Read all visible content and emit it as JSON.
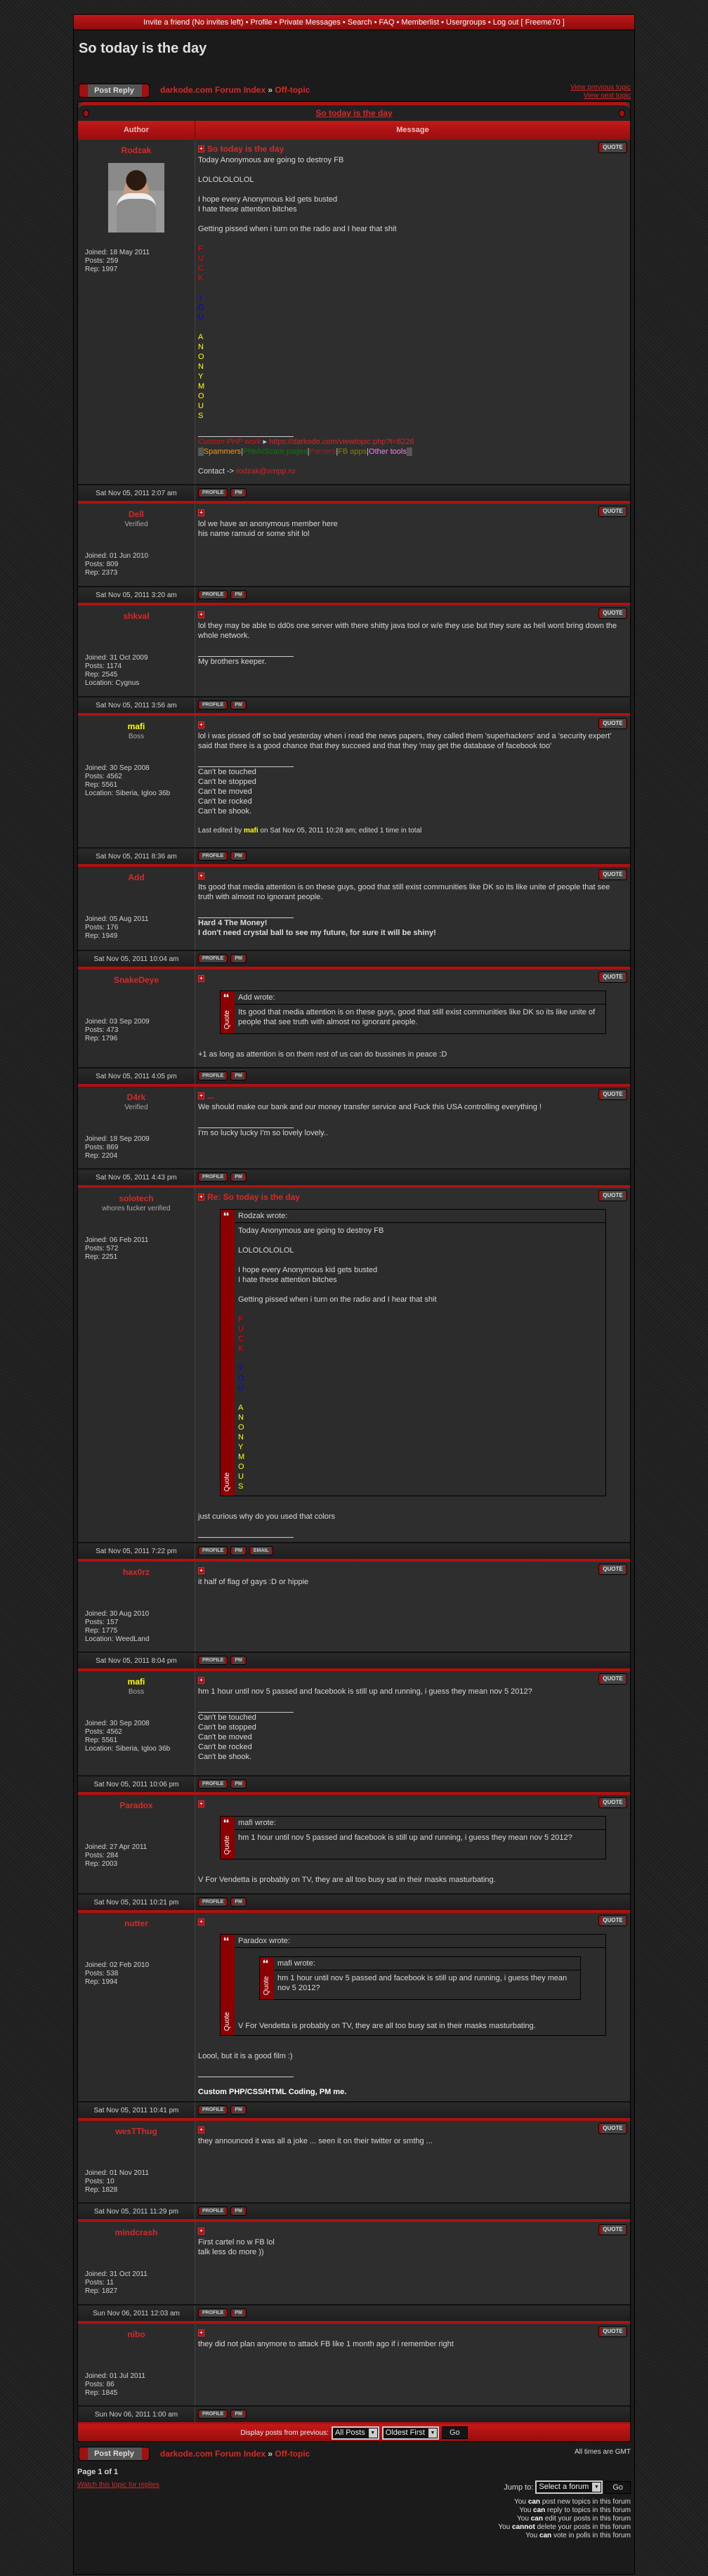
{
  "nav": {
    "items": [
      "Invite a friend (No invites left)",
      "Profile",
      "Private Messages",
      "Search",
      "FAQ",
      "Memberlist",
      "Usergroups",
      "Log out [ Freeme70 ]"
    ]
  },
  "topic": {
    "title": "So today is the day",
    "post_reply": "Post Reply",
    "breadcrumb": {
      "forum_index": "darkode.com Forum Index",
      "separator": "»",
      "forum": "Off-topic"
    },
    "view_previous": "View previous topic",
    "view_next": "View next topic",
    "col_author": "Author",
    "col_message": "Message"
  },
  "colors": {
    "accent": "#b01010",
    "link": "#d42a2a",
    "yellow_user": "#ffff00"
  },
  "labels": {
    "quote": "QUOTE",
    "quote_side": "Quote",
    "joined": "Joined: ",
    "posts": "Posts: ",
    "rep": "Rep: ",
    "location": "Location: "
  },
  "posts": [
    {
      "author": "Rodzak",
      "author_color": "#d42a2a",
      "avatar": true,
      "joined": "18 May 2011",
      "posts": "259",
      "rep": "1997",
      "date": "Sat Nov 05, 2011 2:07 am",
      "subject": "So today is the day",
      "body": [
        "Today Anonymous are going to destroy FB",
        "",
        "LOLOLOLOLOL",
        "",
        "I hope every Anonymous kid gets busted",
        "I hate these attention bitches",
        "",
        "Getting pissed when i turn on the radio and I hear that shit",
        "",
        {
          "t": "F",
          "c": "#ff0000"
        },
        {
          "t": "U",
          "c": "#ff0000"
        },
        {
          "t": "C",
          "c": "#ff0000"
        },
        {
          "t": "K",
          "c": "#ff0000"
        },
        "",
        {
          "t": "Y",
          "c": "#0000ff"
        },
        {
          "t": "O",
          "c": "#0000ff"
        },
        {
          "t": "U",
          "c": "#0000ff"
        },
        "",
        {
          "t": "A",
          "c": "#ffff00"
        },
        {
          "t": "N",
          "c": "#ffff00"
        },
        {
          "t": "O",
          "c": "#ffff00"
        },
        {
          "t": "N",
          "c": "#ffff00"
        },
        {
          "t": "Y",
          "c": "#ffff00"
        },
        {
          "t": "M",
          "c": "#ffff00"
        },
        {
          "t": "O",
          "c": "#ffff00"
        },
        {
          "t": "U",
          "c": "#ffff00"
        },
        {
          "t": "S",
          "c": "#ffff00"
        }
      ],
      "signature": [
        [
          {
            "t": "Custom PHP work",
            "c": "#e01010",
            "i": true
          },
          {
            "t": " ▸ ",
            "c": "#cccccc"
          },
          {
            "t": "https://darkode.com/viewtopic.php?t=8226",
            "c": "#e02020"
          }
        ],
        [
          {
            "t": "▒",
            "c": "#cccccc"
          },
          {
            "t": "Spammers",
            "c": "#ff9900"
          },
          {
            "t": "|",
            "c": "#cccccc"
          },
          {
            "t": "Phish/Scam pages",
            "c": "#008000"
          },
          {
            "t": "|",
            "c": "#cccccc"
          },
          {
            "t": "Parsers",
            "c": "#a02020"
          },
          {
            "t": "|",
            "c": "#cccccc"
          },
          {
            "t": "FB apps",
            "c": "#808000"
          },
          {
            "t": "|",
            "c": "#cccccc"
          },
          {
            "t": "Other tools",
            "c": "#ee82ee"
          },
          {
            "t": "▒",
            "c": "#cccccc"
          }
        ],
        "",
        [
          {
            "t": "Contact -> ",
            "c": "#d8d8d8"
          },
          {
            "t": "rodzak@xmpp.ru",
            "c": "#e02020"
          }
        ]
      ],
      "buttons": [
        "PROFILE",
        "PM"
      ]
    },
    {
      "author": "Dell",
      "author_color": "#d42a2a",
      "rank": "Verified",
      "joined": "01 Jun 2010",
      "posts": "809",
      "rep": "2373",
      "date": "Sat Nov 05, 2011 3:20 am",
      "body": [
        "lol we have an anonymous member here",
        "his name ramuid or some shit lol"
      ],
      "buttons": [
        "PROFILE",
        "PM"
      ]
    },
    {
      "author": "shkval",
      "author_color": "#d42a2a",
      "joined": "31 Oct 2009",
      "posts": "1174",
      "rep": "2545",
      "location": "Cygnus",
      "date": "Sat Nov 05, 2011 3:56 am",
      "body": [
        "lol they may be able to dd0s one server with there shitty java tool or w/e they use but they sure as hell wont bring down the whole network."
      ],
      "signature": [
        "My brothers keeper."
      ],
      "buttons": [
        "PROFILE",
        "PM"
      ]
    },
    {
      "author": "mafi",
      "author_color": "#ffff00",
      "rank": "Boss",
      "joined": "30 Sep 2008",
      "posts": "4562",
      "rep": "5561",
      "location": "Siberia, Igloo 36b",
      "date": "Sat Nov 05, 2011 8:36 am",
      "body": [
        "lol i was pissed off so bad yesterday when i read the news papers, they called them 'superhackers' and a 'security expert' said that there is a good chance that they succeed and that they 'may get the database of facebook too'"
      ],
      "signature": [
        "Can't be touched",
        "Can't be stopped",
        "Can't be moved",
        "Can't be rocked",
        "Can't be shook."
      ],
      "edited": [
        {
          "t": "Last edited by ",
          "c": "#d8d8d8"
        },
        {
          "t": "mafi",
          "c": "#ffff00",
          "b": true
        },
        {
          "t": " on Sat Nov 05, 2011 10:28 am; edited 1 time in total",
          "c": "#d8d8d8"
        }
      ],
      "buttons": [
        "PROFILE",
        "PM"
      ]
    },
    {
      "author": "Add",
      "author_color": "#d42a2a",
      "joined": "05 Aug 2011",
      "posts": "176",
      "rep": "1949",
      "date": "Sat Nov 05, 2011 10:04 am",
      "body": [
        "Its good that media attention is on these guys, good that still exist communities like DK so its like unite of people that see truth with almost no ignorant people."
      ],
      "signature": [
        {
          "t": "Hard 4 The Money!",
          "b": true,
          "c": "#dddddd"
        },
        {
          "t": "I don't need crystal ball to see my future, for sure it will be shiny!",
          "b": true,
          "c": "#dddddd"
        }
      ],
      "buttons": [
        "PROFILE",
        "PM"
      ]
    },
    {
      "author": "SnakeDeye",
      "author_color": "#d42a2a",
      "joined": "03 Sep 2009",
      "posts": "473",
      "rep": "1796",
      "date": "Sat Nov 05, 2011 4:05 pm",
      "body": [
        {
          "quote": "Add wrote:",
          "body": [
            "Its good that media attention is on these guys, good that still exist communities like DK so its like unite of people that see truth with almost no ignorant people."
          ]
        },
        "",
        "+1 as long as attention is on them rest of us can do bussines in peace :D"
      ],
      "buttons": [
        "PROFILE",
        "PM"
      ]
    },
    {
      "author": "D4rk",
      "author_color": "#d42a2a",
      "rank": "Verified",
      "joined": "18 Sep 2009",
      "posts": "869",
      "rep": "2204",
      "date": "Sat Nov 05, 2011 4:43 pm",
      "subject": "...",
      "body": [
        "We should make our bank and our money transfer service and Fuck this USA controlling everything !"
      ],
      "signature": [
        "I'm so lucky lucky I'm so lovely lovely.."
      ],
      "buttons": [
        "PROFILE",
        "PM"
      ]
    },
    {
      "author": "solotech",
      "author_color": "#d42a2a",
      "rank": "whores fucker verified",
      "joined": "06 Feb 2011",
      "posts": "572",
      "rep": "2251",
      "date": "Sat Nov 05, 2011 7:22 pm",
      "subject": "Re: So today is the day",
      "body": [
        {
          "quote": "Rodzak wrote:",
          "body": [
            "Today Anonymous are going to destroy FB",
            "",
            "LOLOLOLOLOL",
            "",
            "I hope every Anonymous kid gets busted",
            "I hate these attention bitches",
            "",
            "Getting pissed when i turn on the radio and I hear that shit",
            "",
            {
              "t": "F",
              "c": "#ff0000"
            },
            {
              "t": "U",
              "c": "#ff0000"
            },
            {
              "t": "C",
              "c": "#ff0000"
            },
            {
              "t": "K",
              "c": "#ff0000"
            },
            "",
            {
              "t": "Y",
              "c": "#0000ff"
            },
            {
              "t": "O",
              "c": "#0000ff"
            },
            {
              "t": "U",
              "c": "#0000ff"
            },
            "",
            {
              "t": "A",
              "c": "#ffff00"
            },
            {
              "t": "N",
              "c": "#ffff00"
            },
            {
              "t": "O",
              "c": "#ffff00"
            },
            {
              "t": "N",
              "c": "#ffff00"
            },
            {
              "t": "Y",
              "c": "#ffff00"
            },
            {
              "t": "M",
              "c": "#ffff00"
            },
            {
              "t": "O",
              "c": "#ffff00"
            },
            {
              "t": "U",
              "c": "#ffff00"
            },
            {
              "t": "S",
              "c": "#ffff00"
            }
          ]
        },
        "",
        "just curious why do you used that colors"
      ],
      "signature": [],
      "buttons": [
        "PROFILE",
        "PM",
        "EMAIL"
      ]
    },
    {
      "author": "hax0rz",
      "author_color": "#d42a2a",
      "joined": "30 Aug 2010",
      "posts": "157",
      "rep": "1775",
      "location": "WeedLand",
      "date": "Sat Nov 05, 2011 8:04 pm",
      "body": [
        "it half of flag of gays :D or hippie"
      ],
      "buttons": [
        "PROFILE",
        "PM"
      ]
    },
    {
      "author": "mafi",
      "author_color": "#ffff00",
      "rank": "Boss",
      "joined": "30 Sep 2008",
      "posts": "4562",
      "rep": "5561",
      "location": "Siberia, Igloo 36b",
      "date": "Sat Nov 05, 2011 10:06 pm",
      "body": [
        "hm 1 hour until nov 5 passed and facebook is still up and running, i guess they mean nov 5 2012?"
      ],
      "signature": [
        "Can't be touched",
        "Can't be stopped",
        "Can't be moved",
        "Can't be rocked",
        "Can't be shook."
      ],
      "buttons": [
        "PROFILE",
        "PM"
      ]
    },
    {
      "author": "Paradox",
      "author_color": "#d42a2a",
      "joined": "27 Apr 2011",
      "posts": "284",
      "rep": "2003",
      "date": "Sat Nov 05, 2011 10:21 pm",
      "body": [
        {
          "quote": "mafi wrote:",
          "body": [
            "hm 1 hour until nov 5 passed and facebook is still up and running, i guess they mean nov 5 2012?"
          ]
        },
        "",
        "V For Vendetta is probably on TV, they are all too busy sat in their masks masturbating."
      ],
      "buttons": [
        "PROFILE",
        "PM"
      ]
    },
    {
      "author": "nutter",
      "author_color": "#d42a2a",
      "joined": "02 Feb 2010",
      "posts": "538",
      "rep": "1994",
      "date": "Sat Nov 05, 2011 10:41 pm",
      "body": [
        {
          "quote": "Paradox wrote:",
          "body": [
            {
              "quote": "mafi wrote:",
              "body": [
                "hm 1 hour until nov 5 passed and facebook is still up and running, i guess they mean nov 5 2012?"
              ]
            },
            "V For Vendetta is probably on TV, they are all too busy sat in their masks masturbating."
          ]
        },
        "",
        "Loool, but it is a good film :)"
      ],
      "signature": [
        "",
        {
          "t": "Custom PHP/CSS/HTML Coding, PM me.",
          "b": true,
          "c": "#ffffff"
        }
      ],
      "buttons": [
        "PROFILE",
        "PM"
      ]
    },
    {
      "author": "wesTThug",
      "author_color": "#d42a2a",
      "joined": "01 Nov 2011",
      "posts": "10",
      "rep": "1828",
      "date": "Sat Nov 05, 2011 11:29 pm",
      "body": [
        "they announced it was all a joke ... seen it on their twitter or smthg ..."
      ],
      "buttons": [
        "PROFILE",
        "PM"
      ]
    },
    {
      "author": "mindcrash",
      "author_color": "#d42a2a",
      "joined": "31 Oct 2011",
      "posts": "11",
      "rep": "1827",
      "date": "Sun Nov 06, 2011 12:03 am",
      "body": [
        "First cartel no w FB lol",
        "talk less do more ))"
      ],
      "buttons": [
        "PROFILE",
        "PM"
      ]
    },
    {
      "author": "nibo",
      "author_color": "#d42a2a",
      "joined": "01 Jul 2011",
      "posts": "86",
      "rep": "1845",
      "date": "Sun Nov 06, 2011 1:00 am",
      "body": [
        "they did not plan anymore to attack FB like 1 month ago if i remember right"
      ],
      "buttons": [
        "PROFILE",
        "PM"
      ]
    }
  ],
  "display_bar": {
    "label": "Display posts from previous:",
    "range_value": "All Posts",
    "order_value": "Oldest First",
    "go": "Go"
  },
  "footer": {
    "timezone": "All times are GMT",
    "page": "Page 1 of 1",
    "watch": "Watch this topic for replies",
    "jump_label": "Jump to:",
    "jump_value": "Select a forum",
    "jump_go": "Go",
    "permissions": [
      [
        "You ",
        "can",
        " post new topics in this forum"
      ],
      [
        "You ",
        "can",
        " reply to topics in this forum"
      ],
      [
        "You ",
        "can",
        " edit your posts in this forum"
      ],
      [
        "You ",
        "cannot",
        " delete your posts in this forum"
      ],
      [
        "You ",
        "can",
        " vote in polls in this forum"
      ]
    ]
  }
}
